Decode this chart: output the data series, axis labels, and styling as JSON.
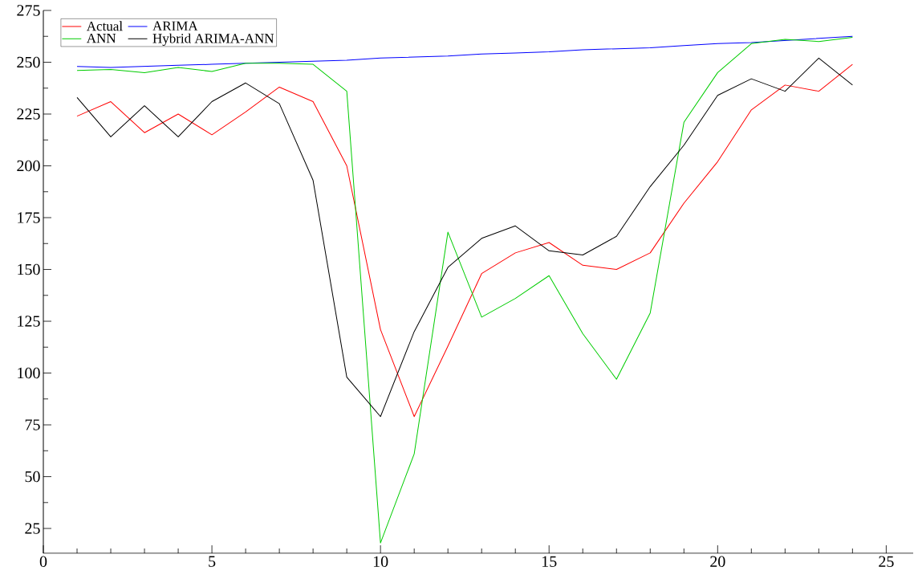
{
  "chart_data": {
    "type": "line",
    "x": [
      1,
      2,
      3,
      4,
      5,
      6,
      7,
      8,
      9,
      10,
      11,
      12,
      13,
      14,
      15,
      16,
      17,
      18,
      19,
      20,
      21,
      22,
      23,
      24
    ],
    "xlim": [
      0,
      25.8
    ],
    "xticks": [
      0,
      5,
      10,
      15,
      20,
      25
    ],
    "ylim": [
      13,
      275
    ],
    "yticks": [
      25,
      50,
      75,
      100,
      125,
      150,
      175,
      200,
      225,
      250,
      275
    ],
    "grid": false,
    "legend": "top left",
    "marker": "none",
    "line_style": "solid",
    "series": [
      {
        "name": "Actual",
        "color": "#ff0000",
        "values": [
          224,
          231,
          216,
          225,
          215,
          226,
          238,
          231,
          200,
          121,
          79,
          113,
          148,
          158,
          163,
          152,
          150,
          158,
          182,
          202,
          227,
          239,
          236,
          249
        ]
      },
      {
        "name": "ANN",
        "color": "#00cc00",
        "values": [
          246,
          246.5,
          245,
          247.5,
          245.5,
          249.5,
          249.5,
          249,
          236,
          18,
          61,
          168,
          127,
          136,
          147,
          119,
          97,
          129,
          221,
          245,
          259,
          261,
          260,
          262
        ]
      },
      {
        "name": "ARIMA",
        "color": "#0000ff",
        "values": [
          248,
          247.5,
          248,
          248.5,
          249,
          249.5,
          250,
          250.5,
          251,
          252,
          252.5,
          253,
          254,
          254.5,
          255,
          256,
          256.5,
          257,
          258,
          259,
          259.5,
          260.5,
          261.5,
          262.5
        ]
      },
      {
        "name": "Hybrid ARIMA-ANN",
        "color": "#000000",
        "values": [
          233,
          214,
          229,
          214,
          231,
          240,
          230,
          193,
          98,
          79,
          120,
          151,
          165,
          171,
          159,
          157,
          166,
          190,
          210,
          234,
          242,
          236,
          252,
          239
        ]
      }
    ]
  }
}
